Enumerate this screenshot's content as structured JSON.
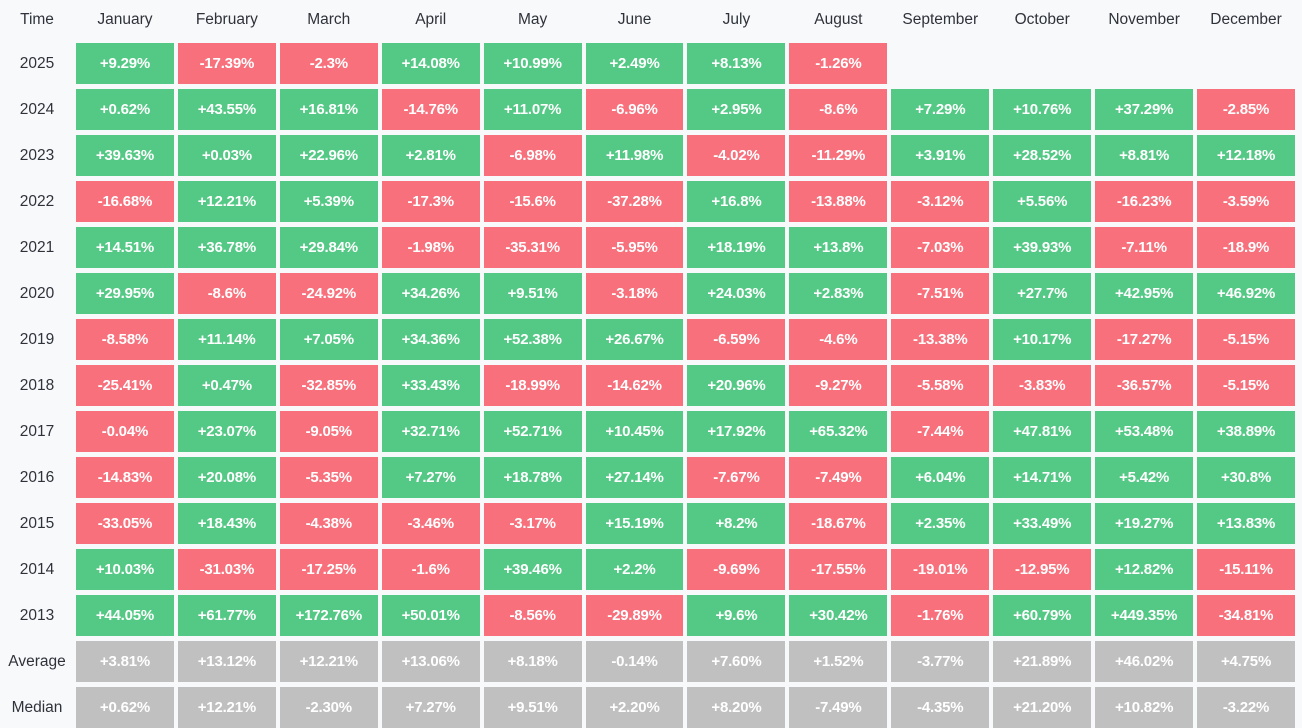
{
  "colors": {
    "positive": "#54c985",
    "negative": "#f7707c",
    "summary": "#c1c0c0",
    "cell_text": "#ffffff",
    "header_text": "#2f323a",
    "background": "#f8f9fa"
  },
  "table": {
    "corner_label": "Time",
    "months": [
      "January",
      "February",
      "March",
      "April",
      "May",
      "June",
      "July",
      "August",
      "September",
      "October",
      "November",
      "December"
    ],
    "rows": [
      {
        "label": "2025",
        "kind": "year",
        "values": [
          "+9.29%",
          "-17.39%",
          "-2.3%",
          "+14.08%",
          "+10.99%",
          "+2.49%",
          "+8.13%",
          "-1.26%",
          "",
          "",
          "",
          ""
        ]
      },
      {
        "label": "2024",
        "kind": "year",
        "values": [
          "+0.62%",
          "+43.55%",
          "+16.81%",
          "-14.76%",
          "+11.07%",
          "-6.96%",
          "+2.95%",
          "-8.6%",
          "+7.29%",
          "+10.76%",
          "+37.29%",
          "-2.85%"
        ]
      },
      {
        "label": "2023",
        "kind": "year",
        "values": [
          "+39.63%",
          "+0.03%",
          "+22.96%",
          "+2.81%",
          "-6.98%",
          "+11.98%",
          "-4.02%",
          "-11.29%",
          "+3.91%",
          "+28.52%",
          "+8.81%",
          "+12.18%"
        ]
      },
      {
        "label": "2022",
        "kind": "year",
        "values": [
          "-16.68%",
          "+12.21%",
          "+5.39%",
          "-17.3%",
          "-15.6%",
          "-37.28%",
          "+16.8%",
          "-13.88%",
          "-3.12%",
          "+5.56%",
          "-16.23%",
          "-3.59%"
        ]
      },
      {
        "label": "2021",
        "kind": "year",
        "values": [
          "+14.51%",
          "+36.78%",
          "+29.84%",
          "-1.98%",
          "-35.31%",
          "-5.95%",
          "+18.19%",
          "+13.8%",
          "-7.03%",
          "+39.93%",
          "-7.11%",
          "-18.9%"
        ]
      },
      {
        "label": "2020",
        "kind": "year",
        "values": [
          "+29.95%",
          "-8.6%",
          "-24.92%",
          "+34.26%",
          "+9.51%",
          "-3.18%",
          "+24.03%",
          "+2.83%",
          "-7.51%",
          "+27.7%",
          "+42.95%",
          "+46.92%"
        ]
      },
      {
        "label": "2019",
        "kind": "year",
        "values": [
          "-8.58%",
          "+11.14%",
          "+7.05%",
          "+34.36%",
          "+52.38%",
          "+26.67%",
          "-6.59%",
          "-4.6%",
          "-13.38%",
          "+10.17%",
          "-17.27%",
          "-5.15%"
        ]
      },
      {
        "label": "2018",
        "kind": "year",
        "values": [
          "-25.41%",
          "+0.47%",
          "-32.85%",
          "+33.43%",
          "-18.99%",
          "-14.62%",
          "+20.96%",
          "-9.27%",
          "-5.58%",
          "-3.83%",
          "-36.57%",
          "-5.15%"
        ]
      },
      {
        "label": "2017",
        "kind": "year",
        "values": [
          "-0.04%",
          "+23.07%",
          "-9.05%",
          "+32.71%",
          "+52.71%",
          "+10.45%",
          "+17.92%",
          "+65.32%",
          "-7.44%",
          "+47.81%",
          "+53.48%",
          "+38.89%"
        ]
      },
      {
        "label": "2016",
        "kind": "year",
        "values": [
          "-14.83%",
          "+20.08%",
          "-5.35%",
          "+7.27%",
          "+18.78%",
          "+27.14%",
          "-7.67%",
          "-7.49%",
          "+6.04%",
          "+14.71%",
          "+5.42%",
          "+30.8%"
        ]
      },
      {
        "label": "2015",
        "kind": "year",
        "values": [
          "-33.05%",
          "+18.43%",
          "-4.38%",
          "-3.46%",
          "-3.17%",
          "+15.19%",
          "+8.2%",
          "-18.67%",
          "+2.35%",
          "+33.49%",
          "+19.27%",
          "+13.83%"
        ]
      },
      {
        "label": "2014",
        "kind": "year",
        "values": [
          "+10.03%",
          "-31.03%",
          "-17.25%",
          "-1.6%",
          "+39.46%",
          "+2.2%",
          "-9.69%",
          "-17.55%",
          "-19.01%",
          "-12.95%",
          "+12.82%",
          "-15.11%"
        ]
      },
      {
        "label": "2013",
        "kind": "year",
        "values": [
          "+44.05%",
          "+61.77%",
          "+172.76%",
          "+50.01%",
          "-8.56%",
          "-29.89%",
          "+9.6%",
          "+30.42%",
          "-1.76%",
          "+60.79%",
          "+449.35%",
          "-34.81%"
        ]
      },
      {
        "label": "Average",
        "kind": "summary",
        "values": [
          "+3.81%",
          "+13.12%",
          "+12.21%",
          "+13.06%",
          "+8.18%",
          "-0.14%",
          "+7.60%",
          "+1.52%",
          "-3.77%",
          "+21.89%",
          "+46.02%",
          "+4.75%"
        ]
      },
      {
        "label": "Median",
        "kind": "summary",
        "values": [
          "+0.62%",
          "+12.21%",
          "-2.30%",
          "+7.27%",
          "+9.51%",
          "+2.20%",
          "+8.20%",
          "-7.49%",
          "-4.35%",
          "+21.20%",
          "+10.82%",
          "-3.22%"
        ]
      }
    ]
  },
  "chart_data": {
    "type": "heatmap",
    "x_labels": [
      "January",
      "February",
      "March",
      "April",
      "May",
      "June",
      "July",
      "August",
      "September",
      "October",
      "November",
      "December"
    ],
    "y_labels": [
      "2025",
      "2024",
      "2023",
      "2022",
      "2021",
      "2020",
      "2019",
      "2018",
      "2017",
      "2016",
      "2015",
      "2014",
      "2013",
      "Average",
      "Median"
    ],
    "unit": "percent",
    "color_rule": "positive=green, negative=red, Average/Median rows=gray",
    "rows": [
      [
        9.29,
        -17.39,
        -2.3,
        14.08,
        10.99,
        2.49,
        8.13,
        -1.26,
        null,
        null,
        null,
        null
      ],
      [
        0.62,
        43.55,
        16.81,
        -14.76,
        11.07,
        -6.96,
        2.95,
        -8.6,
        7.29,
        10.76,
        37.29,
        -2.85
      ],
      [
        39.63,
        0.03,
        22.96,
        2.81,
        -6.98,
        11.98,
        -4.02,
        -11.29,
        3.91,
        28.52,
        8.81,
        12.18
      ],
      [
        -16.68,
        12.21,
        5.39,
        -17.3,
        -15.6,
        -37.28,
        16.8,
        -13.88,
        -3.12,
        5.56,
        -16.23,
        -3.59
      ],
      [
        14.51,
        36.78,
        29.84,
        -1.98,
        -35.31,
        -5.95,
        18.19,
        13.8,
        -7.03,
        39.93,
        -7.11,
        -18.9
      ],
      [
        29.95,
        -8.6,
        -24.92,
        34.26,
        9.51,
        -3.18,
        24.03,
        2.83,
        -7.51,
        27.7,
        42.95,
        46.92
      ],
      [
        -8.58,
        11.14,
        7.05,
        34.36,
        52.38,
        26.67,
        -6.59,
        -4.6,
        -13.38,
        10.17,
        -17.27,
        -5.15
      ],
      [
        -25.41,
        0.47,
        -32.85,
        33.43,
        -18.99,
        -14.62,
        20.96,
        -9.27,
        -5.58,
        -3.83,
        -36.57,
        -5.15
      ],
      [
        -0.04,
        23.07,
        -9.05,
        32.71,
        52.71,
        10.45,
        17.92,
        65.32,
        -7.44,
        47.81,
        53.48,
        38.89
      ],
      [
        -14.83,
        20.08,
        -5.35,
        7.27,
        18.78,
        27.14,
        -7.67,
        -7.49,
        6.04,
        14.71,
        5.42,
        30.8
      ],
      [
        -33.05,
        18.43,
        -4.38,
        -3.46,
        -3.17,
        15.19,
        8.2,
        -18.67,
        2.35,
        33.49,
        19.27,
        13.83
      ],
      [
        10.03,
        -31.03,
        -17.25,
        -1.6,
        39.46,
        2.2,
        -9.69,
        -17.55,
        -19.01,
        -12.95,
        12.82,
        -15.11
      ],
      [
        44.05,
        61.77,
        172.76,
        50.01,
        -8.56,
        -29.89,
        9.6,
        30.42,
        -1.76,
        60.79,
        449.35,
        -34.81
      ],
      [
        3.81,
        13.12,
        12.21,
        13.06,
        8.18,
        -0.14,
        7.6,
        1.52,
        -3.77,
        21.89,
        46.02,
        4.75
      ],
      [
        0.62,
        12.21,
        -2.3,
        7.27,
        9.51,
        2.2,
        8.2,
        -7.49,
        -4.35,
        21.2,
        10.82,
        -3.22
      ]
    ]
  }
}
